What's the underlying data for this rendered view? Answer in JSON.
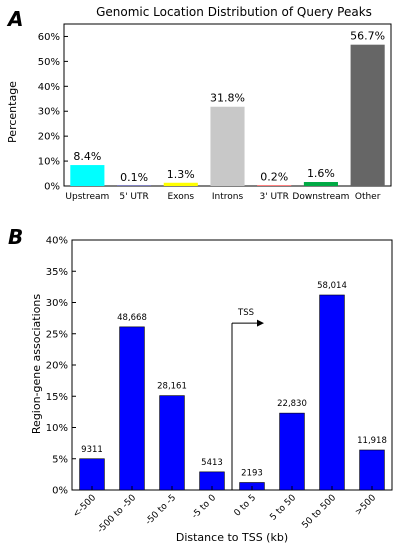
{
  "panel_a": {
    "letter": "A"
  },
  "panel_b": {
    "letter": "B"
  },
  "chart_data": [
    {
      "type": "bar",
      "title": "Genomic Location Distribution of Query Peaks",
      "xlabel": "",
      "ylabel": "Percentage",
      "ylim": [
        0,
        65
      ],
      "yticks": [
        "0%",
        "10%",
        "20%",
        "30%",
        "40%",
        "50%",
        "60%"
      ],
      "categories": [
        "Upstream",
        "5' UTR",
        "Exons",
        "Introns",
        "3' UTR",
        "Downstream",
        "Other"
      ],
      "values": [
        8.4,
        0.1,
        1.3,
        31.8,
        0.2,
        1.6,
        56.7
      ],
      "value_labels": [
        "8.4%",
        "0.1%",
        "1.3%",
        "31.8%",
        "0.2%",
        "1.6%",
        "56.7%"
      ],
      "colors": [
        "#00ffff",
        "#0000ff",
        "#ffff00",
        "#c8c8c8",
        "#ff0000",
        "#00aa44",
        "#666666"
      ],
      "grid": false,
      "legend": "none"
    },
    {
      "type": "bar",
      "title": "",
      "xlabel": "Distance to TSS (kb)",
      "ylabel": "Region-gene associations",
      "ylim": [
        0,
        40
      ],
      "yticks": [
        "0%",
        "5%",
        "10%",
        "15%",
        "20%",
        "25%",
        "30%",
        "35%",
        "40%"
      ],
      "categories": [
        "<-500",
        "-500 to -50",
        "-50 to -5",
        "-5 to 0",
        "0 to 5",
        "5 to 50",
        "50 to 500",
        ">500"
      ],
      "values": [
        5.0,
        26.1,
        15.1,
        2.9,
        1.2,
        12.3,
        31.2,
        6.4
      ],
      "value_labels": [
        "9311",
        "48,668",
        "28,161",
        "5413",
        "2193",
        "22,830",
        "58,014",
        "11,918"
      ],
      "color": "#0000ff",
      "annotation": "TSS",
      "grid": false,
      "legend": "none"
    }
  ]
}
